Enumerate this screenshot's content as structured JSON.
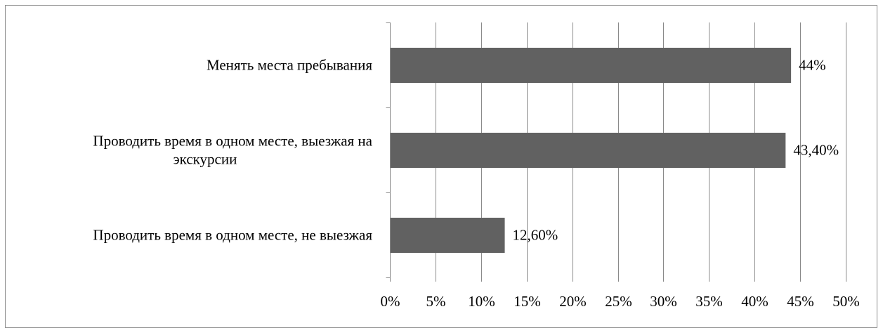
{
  "chart_data": {
    "type": "bar",
    "orientation": "horizontal",
    "title": "",
    "xlabel": "",
    "ylabel": "",
    "categories": [
      [
        "Менять места пребывания"
      ],
      [
        "Проводить время в одном месте, выезжая на",
        "экскурсии"
      ],
      [
        "Проводить время в одном месте, не выезжая"
      ]
    ],
    "values": [
      44,
      43.4,
      12.6
    ],
    "data_labels": [
      "44%",
      "43,40%",
      "12,60%"
    ],
    "x_ticks": [
      "0%",
      "5%",
      "10%",
      "15%",
      "20%",
      "25%",
      "30%",
      "35%",
      "40%",
      "45%",
      "50%"
    ],
    "xlim": [
      0,
      50
    ],
    "grid": true,
    "legend": "none",
    "colors": {
      "bar": "#616161",
      "grid": "#8a8a8a",
      "border": "#8c8c8c",
      "text": "#000000"
    }
  }
}
